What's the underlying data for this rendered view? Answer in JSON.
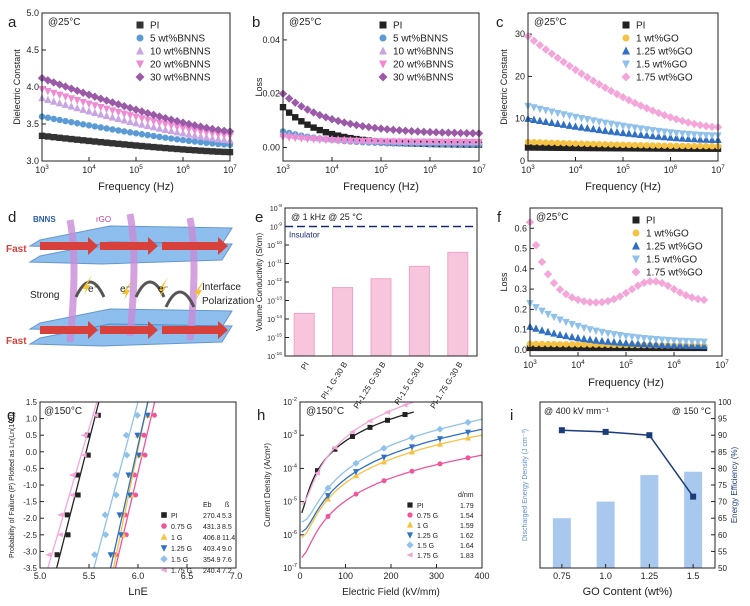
{
  "figure": {
    "panels": [
      "a",
      "b",
      "c",
      "d",
      "e",
      "f",
      "g",
      "h",
      "i"
    ]
  },
  "chart_data": [
    {
      "id": "a",
      "type": "scatter",
      "title": "",
      "annotation": "@25°C",
      "xlabel": "Frequency (Hz)",
      "ylabel": "Dielectric Constant",
      "xscale": "log",
      "xlim": [
        1000,
        10000000
      ],
      "ylim": [
        3.0,
        5.0
      ],
      "xticks": [
        "10^3",
        "10^4",
        "10^5",
        "10^6",
        "10^7"
      ],
      "yticks": [
        "3.0",
        "3.5",
        "4.0",
        "4.5",
        "5.0"
      ],
      "legend_position": "top-right",
      "x": [
        1000,
        1334,
        1778,
        2371,
        3162,
        4217,
        5623,
        7499,
        10000,
        13335,
        17783,
        23714,
        31623,
        42170,
        56234,
        74989,
        100000,
        133352,
        177828,
        237137,
        316228,
        421697,
        562341,
        749894,
        1000000,
        1333521,
        1778279,
        2371374,
        3162278,
        4216965,
        5623413,
        7498942,
        10000000
      ],
      "series": [
        {
          "name": "PI",
          "marker": "square",
          "color": "#333333",
          "start": 3.34,
          "end": 3.12
        },
        {
          "name": "5 wt%BNNS",
          "marker": "circle",
          "color": "#5b9bd5",
          "start": 3.6,
          "end": 3.22
        },
        {
          "name": "10 wt%BNNS",
          "marker": "triangle",
          "color": "#c9a6e3",
          "start": 3.85,
          "end": 3.28
        },
        {
          "name": "20 wt%BNNS",
          "marker": "triangle-down",
          "color": "#f08ad3",
          "start": 3.97,
          "end": 3.34
        },
        {
          "name": "30 wt%BNNS",
          "marker": "diamond",
          "color": "#9b5aa8",
          "start": 4.12,
          "end": 3.4
        }
      ]
    },
    {
      "id": "b",
      "type": "scatter",
      "annotation": "@25°C",
      "xlabel": "Frequency (Hz)",
      "ylabel": "Loss",
      "xscale": "log",
      "xlim": [
        1000,
        10000000
      ],
      "ylim": [
        -0.005,
        0.05
      ],
      "xticks": [
        "10^3",
        "10^4",
        "10^5",
        "10^6",
        "10^7"
      ],
      "yticks": [
        "0.00",
        "0.02",
        "0.04"
      ],
      "legend_position": "top-right",
      "series": [
        {
          "name": "PI",
          "marker": "square",
          "color": "#222222",
          "start": 0.015,
          "end": 0.001
        },
        {
          "name": "5 wt%BNNS",
          "marker": "circle",
          "color": "#5b9bd5",
          "start": 0.006,
          "end": 0.001
        },
        {
          "name": "10 wt%BNNS",
          "marker": "triangle",
          "color": "#c9a6e3",
          "start": 0.005,
          "end": 0.002
        },
        {
          "name": "20 wt%BNNS",
          "marker": "triangle-down",
          "color": "#f08ad3",
          "start": 0.004,
          "end": 0.002
        },
        {
          "name": "30 wt%BNNS",
          "marker": "diamond",
          "color": "#9b5aa8",
          "start": 0.02,
          "end": 0.005
        }
      ]
    },
    {
      "id": "c",
      "type": "scatter",
      "annotation": "@25°C",
      "xlabel": "Frequency (Hz)",
      "ylabel": "Dielectric Constant",
      "xscale": "log",
      "xlim": [
        1000,
        10000000
      ],
      "ylim": [
        0,
        35
      ],
      "xticks": [
        "10^3",
        "10^4",
        "10^5",
        "10^6",
        "10^7"
      ],
      "yticks": [
        "0",
        "10",
        "20",
        "30"
      ],
      "legend_position": "top-right",
      "series": [
        {
          "name": "PI",
          "marker": "square",
          "color": "#222222",
          "start": 3.2,
          "end": 2.9
        },
        {
          "name": "1 wt%GO",
          "marker": "circle",
          "color": "#f5c242",
          "start": 4.5,
          "end": 3.5
        },
        {
          "name": "1.25 wt%GO",
          "marker": "triangle",
          "color": "#2f6fc4",
          "start": 10.0,
          "end": 5.0
        },
        {
          "name": "1.5 wt%GO",
          "marker": "triangle-down",
          "color": "#8fc1ea",
          "start": 13.0,
          "end": 6.0
        },
        {
          "name": "1.75 wt%GO",
          "marker": "diamond",
          "color": "#f4a6da",
          "start": 29.5,
          "end": 8.0
        }
      ]
    },
    {
      "id": "d",
      "type": "diagram",
      "labels": {
        "bnns": "BNNS",
        "rgo": "rGO",
        "fast_top": "Fast",
        "fast_bottom": "Fast",
        "strong": "Strong",
        "interface": "Interface\nPolarization",
        "electron": "e⁻"
      }
    },
    {
      "id": "e",
      "type": "bar",
      "annotation": "@ 1 kHz  @ 25 °C",
      "insulator_label": "Insulator",
      "insulator_level": 1e-09,
      "ylabel": "Volume Conductivity (S/cm)",
      "yscale": "log",
      "ylim": [
        1e-16,
        1e-08
      ],
      "yticks": [
        "10^-8",
        "10^-9",
        "10^-10",
        "10^-11",
        "10^-12",
        "10^-13",
        "10^-14",
        "10^-15",
        "10^-16"
      ],
      "categories": [
        "PI",
        "PI-1 G-30 B",
        "PI-1.25 G-30 B",
        "PI-1.5 G-30 B",
        "PI-1.75 G-30 B"
      ],
      "values": [
        2e-14,
        5e-13,
        1.5e-12,
        7e-12,
        4e-11
      ]
    },
    {
      "id": "f",
      "type": "scatter",
      "annotation": "@25°C",
      "xlabel": "Frequency (Hz)",
      "ylabel": "Loss",
      "xscale": "log",
      "xlim": [
        1000,
        10000000
      ],
      "ylim": [
        -0.03,
        0.7
      ],
      "xticks": [
        "10^3",
        "10^4",
        "10^5",
        "10^6",
        "10^7"
      ],
      "yticks": [
        "0.0",
        "0.1",
        "0.2",
        "0.3",
        "0.4",
        "0.5",
        "0.6"
      ],
      "legend_position": "top-right",
      "series": [
        {
          "name": "PI",
          "marker": "square",
          "color": "#222222"
        },
        {
          "name": "1 wt%GO",
          "marker": "circle",
          "color": "#f5c242"
        },
        {
          "name": "1.25 wt%GO",
          "marker": "triangle",
          "color": "#2f6fc4"
        },
        {
          "name": "1.5 wt%GO",
          "marker": "triangle-down",
          "color": "#8fc1ea"
        },
        {
          "name": "1.75 wt%GO",
          "marker": "diamond",
          "color": "#f4a6da"
        }
      ]
    },
    {
      "id": "g",
      "type": "scatter",
      "annotation": "@150°C",
      "xlabel": "LnE",
      "ylabel": "Probability of Failure (P) Plotted as Ln(Ln(1-P))",
      "xlim": [
        5.0,
        7.0
      ],
      "ylim": [
        -3.5,
        1.5
      ],
      "xticks": [
        "5.0",
        "5.5",
        "6.0",
        "6.5",
        "7.0"
      ],
      "yticks": [
        "1.5",
        "1.0",
        "0.5",
        "0.0",
        "-0.5",
        "-1.0",
        "-1.5",
        "-2.0",
        "-2.5",
        "-3.0",
        "-3.5"
      ],
      "table_headers": [
        "Eb",
        "ß"
      ],
      "series": [
        {
          "name": "PI",
          "marker": "square",
          "color": "#222222",
          "Eb": "270.4",
          "beta": "5.3",
          "line": [
            5.17,
            5.6
          ]
        },
        {
          "name": "0.75 G",
          "marker": "circle",
          "color": "#f0559b",
          "Eb": "431.3",
          "beta": "8.5",
          "line": [
            5.77,
            6.17
          ]
        },
        {
          "name": "1 G",
          "marker": "triangle",
          "color": "#f5c242",
          "Eb": "406.8",
          "beta": "11.4",
          "line": [
            5.75,
            6.1
          ]
        },
        {
          "name": "1.25 G",
          "marker": "triangle-down",
          "color": "#2f6fc4",
          "Eb": "403.4",
          "beta": "9.0",
          "line": [
            5.72,
            6.1
          ]
        },
        {
          "name": "1.5 G",
          "marker": "diamond",
          "color": "#8fc1ea",
          "Eb": "354.9",
          "beta": "7.6",
          "line": [
            5.55,
            6.0
          ]
        },
        {
          "name": "1.75 G",
          "marker": "triangle-left",
          "color": "#f4a6da",
          "Eb": "240.4",
          "beta": "7.2",
          "line": [
            5.08,
            5.58
          ]
        }
      ]
    },
    {
      "id": "h",
      "type": "line",
      "annotation": "@150°C",
      "xlabel": "Electric Field (kV/mm)",
      "ylabel": "Current Density (A/cm²)",
      "xlim": [
        0,
        400
      ],
      "yscale": "log",
      "ylim": [
        1e-07,
        0.01
      ],
      "xticks": [
        "0",
        "100",
        "200",
        "300",
        "400"
      ],
      "yticks": [
        "10^-2",
        "10^-3",
        "10^-4",
        "10^-5",
        "10^-6",
        "10^-7"
      ],
      "table_header": "d/nm",
      "series": [
        {
          "name": "PI",
          "marker": "square",
          "color": "#222222",
          "d": "1.79"
        },
        {
          "name": "0.75 G",
          "marker": "circle",
          "color": "#f0559b",
          "d": "1.54"
        },
        {
          "name": "1 G",
          "marker": "triangle",
          "color": "#f5c242",
          "d": "1.59"
        },
        {
          "name": "1.25 G",
          "marker": "triangle-down",
          "color": "#2f6fc4",
          "d": "1.62"
        },
        {
          "name": "1.5 G",
          "marker": "diamond",
          "color": "#8fc1ea",
          "d": "1.64"
        },
        {
          "name": "1.75 G",
          "marker": "triangle-left",
          "color": "#f4a6da",
          "d": "1.83"
        }
      ]
    },
    {
      "id": "i",
      "type": "bar+line",
      "annotation_left": "@ 400 kV mm⁻¹",
      "annotation_right": "@ 150 °C",
      "xlabel": "GO Content (wt%)",
      "ylabel": "Discharged Energy Density (J cm⁻³)",
      "y2label": "Energy Efficiency (%)",
      "categories": [
        "0.75",
        "1.0",
        "1.25",
        "1.5"
      ],
      "y2lim": [
        50,
        100
      ],
      "y2ticks": [
        "50",
        "55",
        "60",
        "65",
        "70",
        "75",
        "80",
        "85",
        "90",
        "95",
        "100"
      ],
      "bar_values_pct_scale": [
        65,
        70,
        78,
        79
      ],
      "line_values": [
        91.5,
        91,
        90,
        71.5
      ],
      "bar_color": "#a8c8ee",
      "line_color": "#1a3c7a"
    }
  ]
}
